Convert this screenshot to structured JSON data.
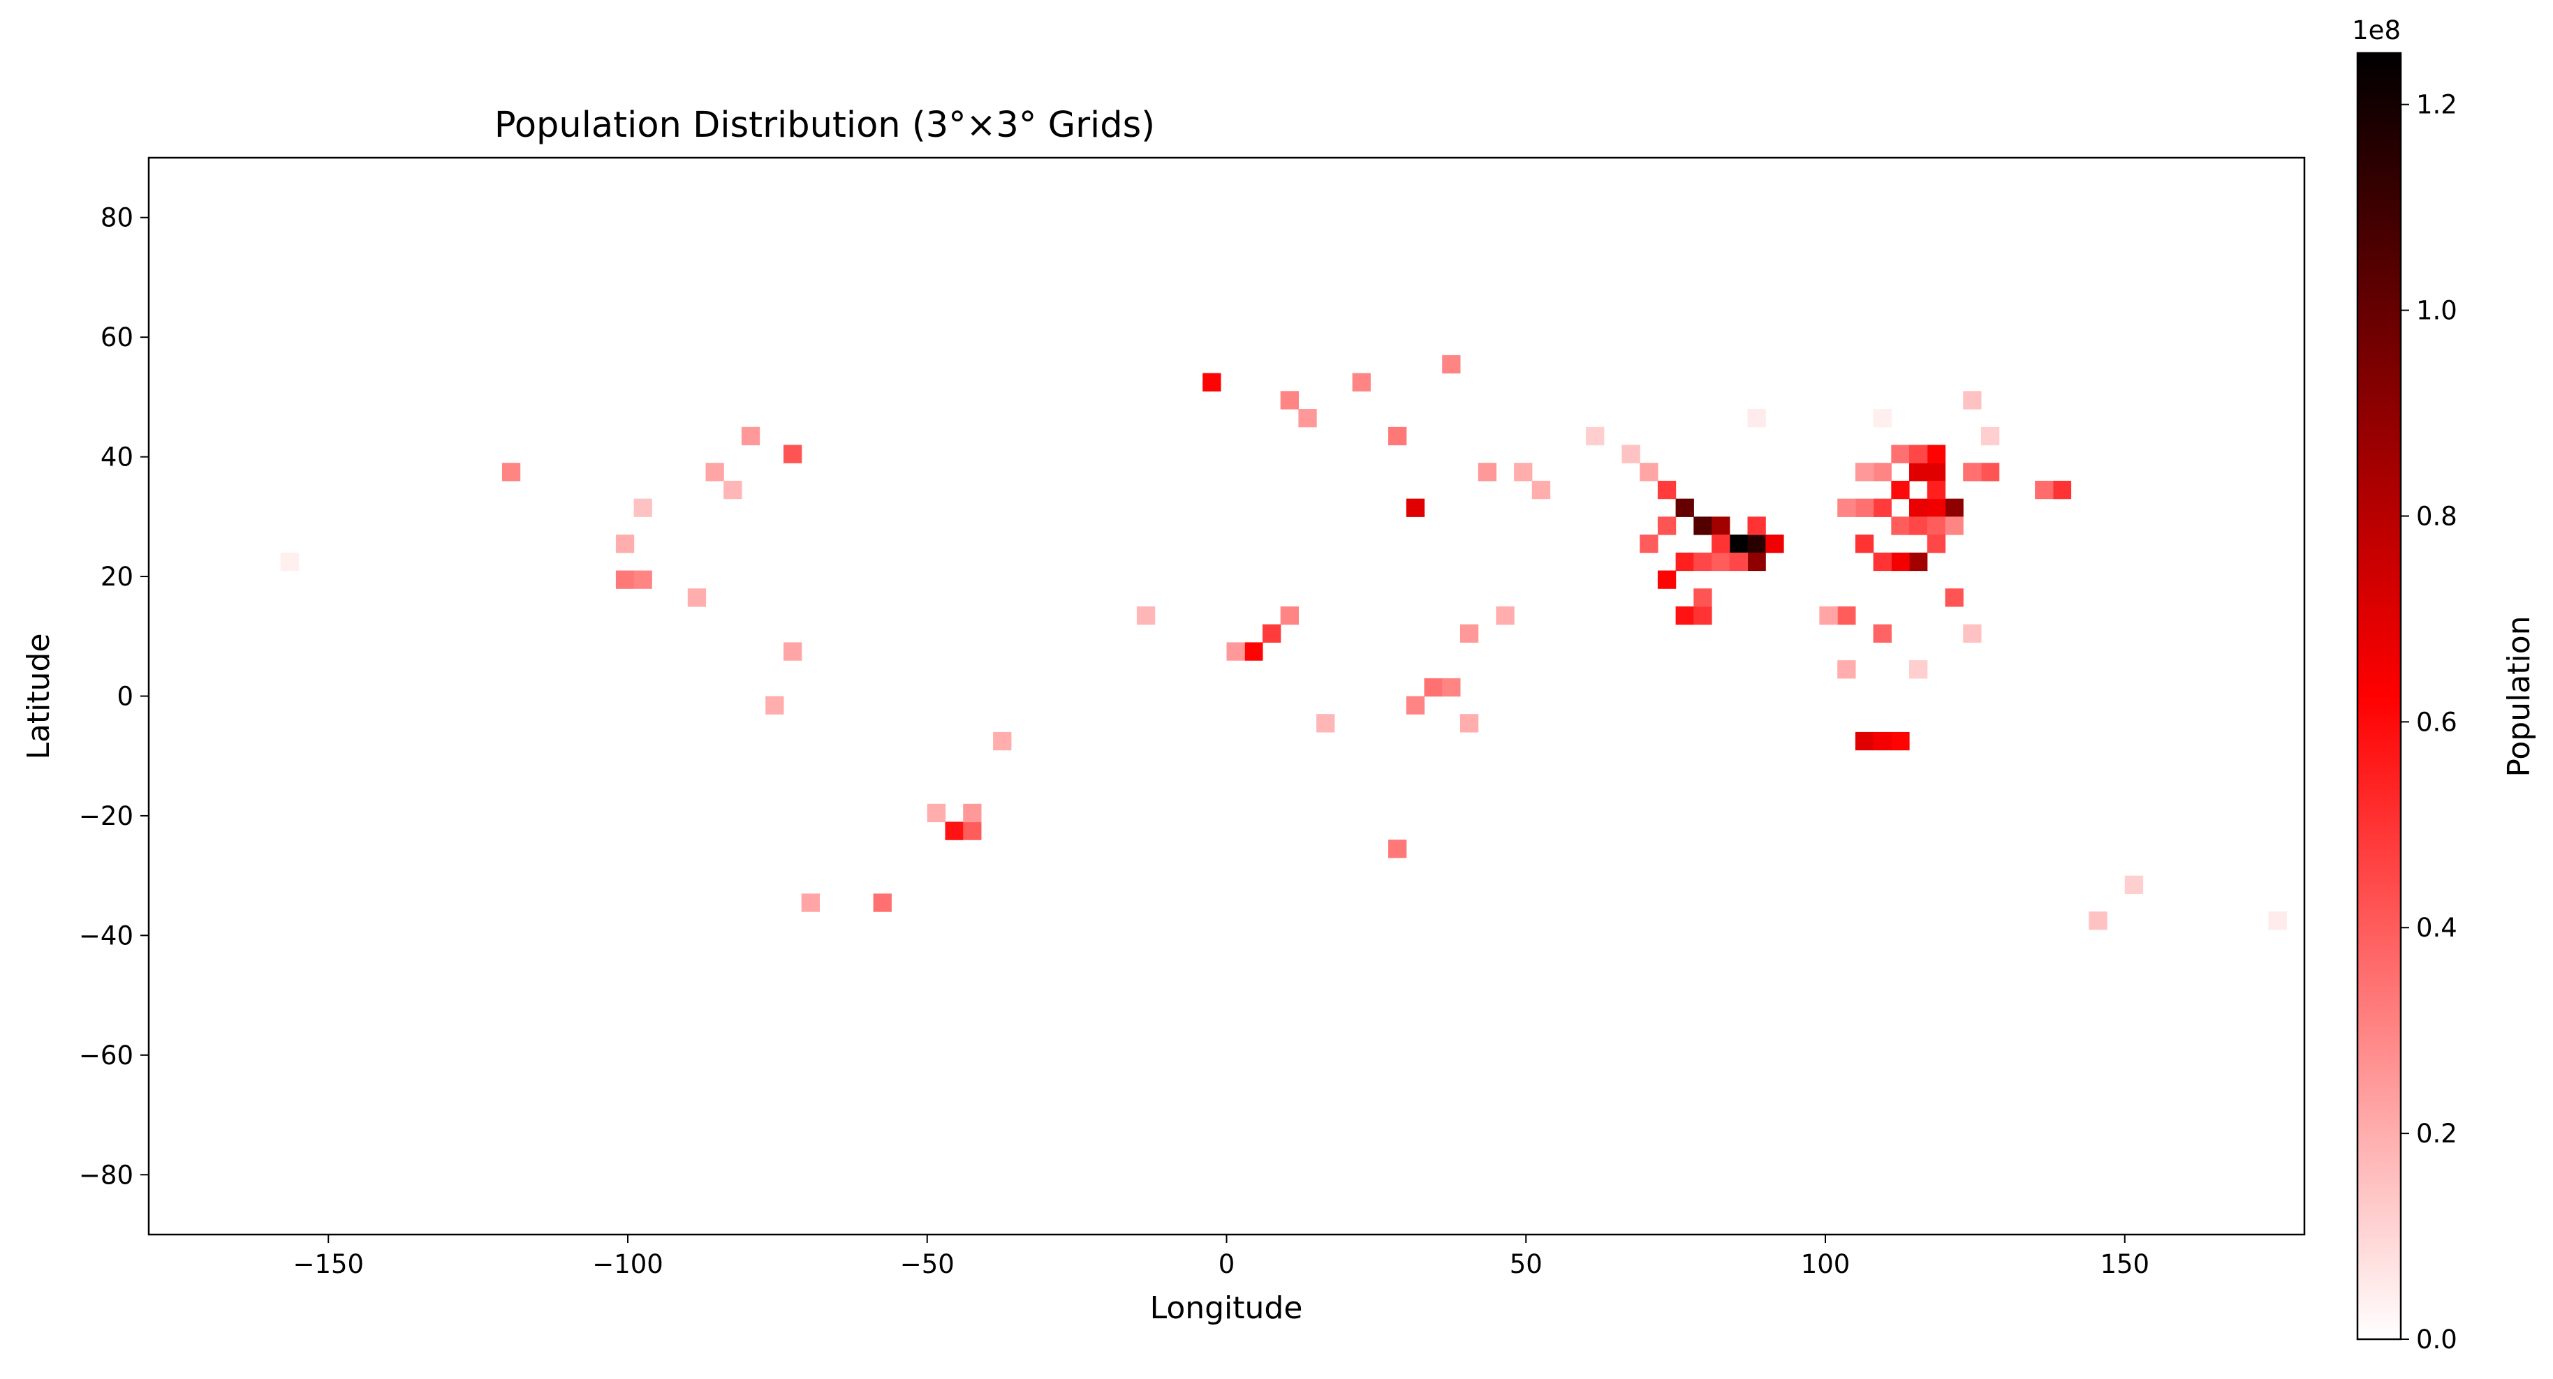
{
  "chart_data": {
    "type": "heatmap",
    "title": "Population Distribution (3°×3° Grids)",
    "xlabel": "Longitude",
    "ylabel": "Latitude",
    "xlim": [
      -180,
      180
    ],
    "ylim": [
      -90,
      90
    ],
    "grid": false,
    "cell_size_deg": 3,
    "x_ticks": [
      -150,
      -100,
      -50,
      0,
      50,
      100,
      150
    ],
    "x_tick_labels": [
      "−150",
      "−100",
      "−50",
      "0",
      "50",
      "100",
      "150"
    ],
    "y_ticks": [
      80,
      60,
      40,
      20,
      0,
      -20,
      -40,
      -60,
      -80
    ],
    "y_tick_labels": [
      "80",
      "60",
      "40",
      "20",
      "0",
      "−20",
      "−40",
      "−60",
      "−80"
    ],
    "colorbar": {
      "label": "Population",
      "offset_text": "1e8",
      "min": 0,
      "max": 1.25,
      "scale": 100000000,
      "ticks": [
        0.0,
        0.2,
        0.4,
        0.6,
        0.8,
        1.0,
        1.2
      ],
      "tick_labels": [
        "0.0",
        "0.2",
        "0.4",
        "0.6",
        "0.8",
        "1.0",
        "1.2"
      ],
      "colors": [
        "#ffffff",
        "#ff0000",
        "#000000"
      ],
      "color_stops": [
        0,
        0.5,
        1
      ]
    },
    "cells": [
      {
        "lon": 84,
        "lat": 24,
        "value": 1.25
      },
      {
        "lon": 87,
        "lat": 24,
        "value": 1.15
      },
      {
        "lon": 78,
        "lat": 27,
        "value": 1.05
      },
      {
        "lon": 75,
        "lat": 30,
        "value": 1.0
      },
      {
        "lon": 81,
        "lat": 27,
        "value": 0.85
      },
      {
        "lon": 87,
        "lat": 21,
        "value": 0.9
      },
      {
        "lon": 120,
        "lat": 30,
        "value": 0.9
      },
      {
        "lon": 114,
        "lat": 21,
        "value": 0.85
      },
      {
        "lon": 114,
        "lat": 36,
        "value": 0.7
      },
      {
        "lon": 117,
        "lat": 36,
        "value": 0.7
      },
      {
        "lon": 117,
        "lat": 39,
        "value": 0.62
      },
      {
        "lon": 111,
        "lat": 33,
        "value": 0.6
      },
      {
        "lon": 114,
        "lat": 30,
        "value": 0.68
      },
      {
        "lon": 117,
        "lat": 30,
        "value": 0.66
      },
      {
        "lon": 111,
        "lat": 21,
        "value": 0.65
      },
      {
        "lon": 108,
        "lat": 21,
        "value": 0.5
      },
      {
        "lon": 105,
        "lat": -9,
        "value": 0.7
      },
      {
        "lon": 108,
        "lat": -9,
        "value": 0.65
      },
      {
        "lon": 111,
        "lat": -9,
        "value": 0.62
      },
      {
        "lon": 72,
        "lat": 18,
        "value": 0.62
      },
      {
        "lon": 75,
        "lat": 21,
        "value": 0.55
      },
      {
        "lon": 75,
        "lat": 12,
        "value": 0.58
      },
      {
        "lon": 78,
        "lat": 12,
        "value": 0.5
      },
      {
        "lon": 90,
        "lat": 24,
        "value": 0.66
      },
      {
        "lon": 87,
        "lat": 27,
        "value": 0.5
      },
      {
        "lon": 30,
        "lat": 30,
        "value": 0.7
      },
      {
        "lon": 3,
        "lat": 6,
        "value": 0.62
      },
      {
        "lon": 6,
        "lat": 9,
        "value": 0.48
      },
      {
        "lon": -47,
        "lat": -24,
        "value": 0.58
      },
      {
        "lon": -44,
        "lat": -24,
        "value": 0.4
      },
      {
        "lon": -102,
        "lat": 18,
        "value": 0.33
      },
      {
        "lon": -99,
        "lat": 18,
        "value": 0.3
      },
      {
        "lon": -74,
        "lat": 39,
        "value": 0.42
      },
      {
        "lon": -4,
        "lat": 51,
        "value": 0.62
      },
      {
        "lon": 138,
        "lat": 33,
        "value": 0.5
      },
      {
        "lon": 135,
        "lat": 33,
        "value": 0.36
      },
      {
        "lon": 126,
        "lat": 36,
        "value": 0.42
      },
      {
        "lon": 123,
        "lat": 36,
        "value": 0.35
      },
      {
        "lon": 102,
        "lat": 12,
        "value": 0.4
      },
      {
        "lon": 99,
        "lat": 12,
        "value": 0.22
      },
      {
        "lon": 120,
        "lat": 15,
        "value": 0.42
      },
      {
        "lon": 108,
        "lat": 9,
        "value": 0.38
      },
      {
        "lon": 69,
        "lat": 24,
        "value": 0.4
      },
      {
        "lon": 72,
        "lat": 33,
        "value": 0.48
      },
      {
        "lon": 72,
        "lat": 27,
        "value": 0.42
      },
      {
        "lon": 78,
        "lat": 21,
        "value": 0.45
      },
      {
        "lon": 81,
        "lat": 21,
        "value": 0.4
      },
      {
        "lon": 78,
        "lat": 15,
        "value": 0.42
      },
      {
        "lon": 81,
        "lat": 24,
        "value": 0.5
      },
      {
        "lon": 84,
        "lat": 21,
        "value": 0.45
      },
      {
        "lon": 105,
        "lat": 24,
        "value": 0.5
      },
      {
        "lon": 108,
        "lat": 30,
        "value": 0.48
      },
      {
        "lon": 105,
        "lat": 30,
        "value": 0.35
      },
      {
        "lon": 111,
        "lat": 27,
        "value": 0.4
      },
      {
        "lon": 114,
        "lat": 27,
        "value": 0.45
      },
      {
        "lon": 117,
        "lat": 33,
        "value": 0.55
      },
      {
        "lon": 111,
        "lat": 39,
        "value": 0.35
      },
      {
        "lon": 108,
        "lat": 36,
        "value": 0.3
      },
      {
        "lon": 114,
        "lat": 39,
        "value": 0.45
      },
      {
        "lon": 117,
        "lat": 27,
        "value": 0.4
      },
      {
        "lon": 120,
        "lat": 27,
        "value": 0.3
      },
      {
        "lon": 117,
        "lat": 24,
        "value": 0.45
      },
      {
        "lon": 105,
        "lat": 36,
        "value": 0.25
      },
      {
        "lon": 102,
        "lat": 30,
        "value": 0.3
      },
      {
        "lon": 33,
        "lat": 0,
        "value": 0.35
      },
      {
        "lon": 36,
        "lat": 0,
        "value": 0.3
      },
      {
        "lon": 30,
        "lat": -3,
        "value": 0.3
      },
      {
        "lon": 39,
        "lat": -6,
        "value": 0.2
      },
      {
        "lon": 27,
        "lat": -27,
        "value": 0.33
      },
      {
        "lon": 27,
        "lat": 42,
        "value": 0.33
      },
      {
        "lon": 12,
        "lat": 45,
        "value": 0.25
      },
      {
        "lon": 9,
        "lat": 48,
        "value": 0.3
      },
      {
        "lon": 21,
        "lat": 51,
        "value": 0.3
      },
      {
        "lon": 36,
        "lat": 54,
        "value": 0.3
      },
      {
        "lon": 42,
        "lat": 36,
        "value": 0.25
      },
      {
        "lon": 48,
        "lat": 36,
        "value": 0.2
      },
      {
        "lon": 51,
        "lat": 33,
        "value": 0.2
      },
      {
        "lon": -121,
        "lat": 36,
        "value": 0.3
      },
      {
        "lon": -81,
        "lat": 42,
        "value": 0.25
      },
      {
        "lon": -87,
        "lat": 36,
        "value": 0.22
      },
      {
        "lon": -84,
        "lat": 33,
        "value": 0.18
      },
      {
        "lon": -99,
        "lat": 30,
        "value": 0.15
      },
      {
        "lon": -102,
        "lat": 24,
        "value": 0.2
      },
      {
        "lon": -90,
        "lat": 15,
        "value": 0.2
      },
      {
        "lon": -74,
        "lat": 6,
        "value": 0.22
      },
      {
        "lon": -77,
        "lat": -3,
        "value": 0.2
      },
      {
        "lon": -59,
        "lat": -36,
        "value": 0.35
      },
      {
        "lon": -71,
        "lat": -36,
        "value": 0.22
      },
      {
        "lon": -44,
        "lat": -21,
        "value": 0.25
      },
      {
        "lon": -50,
        "lat": -21,
        "value": 0.2
      },
      {
        "lon": -39,
        "lat": -9,
        "value": 0.2
      },
      {
        "lon": 9,
        "lat": 12,
        "value": 0.3
      },
      {
        "lon": 0,
        "lat": 6,
        "value": 0.25
      },
      {
        "lon": -15,
        "lat": 12,
        "value": 0.18
      },
      {
        "lon": 39,
        "lat": 9,
        "value": 0.25
      },
      {
        "lon": 45,
        "lat": 12,
        "value": 0.2
      },
      {
        "lon": 15,
        "lat": -6,
        "value": 0.18
      },
      {
        "lon": 69,
        "lat": 36,
        "value": 0.22
      },
      {
        "lon": 66,
        "lat": 39,
        "value": 0.15
      },
      {
        "lon": 60,
        "lat": 42,
        "value": 0.12
      },
      {
        "lon": 102,
        "lat": 3,
        "value": 0.2
      },
      {
        "lon": 114,
        "lat": 3,
        "value": 0.12
      },
      {
        "lon": 123,
        "lat": 9,
        "value": 0.15
      },
      {
        "lon": 144,
        "lat": -39,
        "value": 0.15
      },
      {
        "lon": 150,
        "lat": -33,
        "value": 0.12
      },
      {
        "lon": 174,
        "lat": -39,
        "value": 0.05
      },
      {
        "lon": -158,
        "lat": 21,
        "value": 0.04
      },
      {
        "lon": 123,
        "lat": 48,
        "value": 0.15
      },
      {
        "lon": 126,
        "lat": 42,
        "value": 0.12
      },
      {
        "lon": 87,
        "lat": 45,
        "value": 0.05
      },
      {
        "lon": 108,
        "lat": 45,
        "value": 0.04
      }
    ]
  }
}
